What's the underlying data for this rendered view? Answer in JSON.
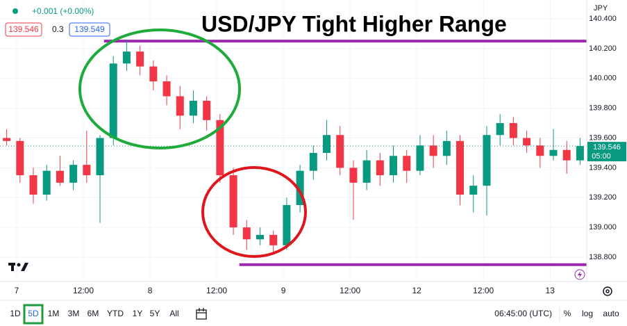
{
  "header": {
    "change": "+0.001 (+0.00%)",
    "bid": "139.546",
    "spread": "0.3",
    "ask": "139.549"
  },
  "chart_data": {
    "type": "candlestick",
    "title": "USD/JPY Tight Higher Range",
    "currency": "JPY",
    "x": [
      -0.15,
      0.05,
      0.25,
      0.45,
      0.65,
      0.85,
      1.05,
      1.25,
      1.45,
      1.65,
      1.85,
      2.05,
      2.25,
      2.45,
      2.65,
      2.85,
      3.05,
      3.25,
      3.45,
      3.65,
      3.85,
      4.05,
      4.25,
      4.45,
      4.65,
      4.85,
      5.05,
      5.25,
      5.45,
      5.65,
      5.85,
      6.05,
      6.25,
      6.45,
      6.65,
      6.85,
      7.05,
      7.25,
      7.45,
      7.65,
      7.85,
      8.05,
      8.25,
      8.45
    ],
    "open": [
      139.6,
      139.58,
      139.35,
      139.22,
      139.38,
      139.3,
      139.42,
      139.35,
      139.6,
      140.1,
      140.18,
      140.08,
      139.98,
      139.88,
      139.75,
      139.85,
      139.72,
      139.35,
      139.0,
      138.92,
      138.95,
      138.88,
      139.15,
      139.38,
      139.5,
      139.62,
      139.4,
      139.3,
      139.45,
      139.35,
      139.48,
      139.38,
      139.55,
      139.48,
      139.58,
      139.22,
      139.28,
      139.62,
      139.7,
      139.6,
      139.55,
      139.48,
      139.52,
      139.45
    ],
    "high": [
      139.66,
      139.6,
      139.4,
      139.42,
      139.48,
      139.45,
      139.65,
      139.62,
      140.15,
      140.26,
      140.22,
      140.12,
      140.02,
      139.95,
      139.92,
      139.88,
      139.76,
      139.4,
      139.05,
      139.0,
      138.98,
      139.2,
      139.42,
      139.55,
      139.72,
      139.68,
      139.45,
      139.52,
      139.5,
      139.55,
      139.52,
      139.62,
      139.62,
      139.65,
      139.62,
      139.35,
      139.68,
      139.76,
      139.74,
      139.65,
      139.6,
      139.66,
      139.58,
      139.6
    ],
    "low": [
      139.55,
      139.3,
      139.16,
      139.18,
      139.28,
      139.25,
      139.3,
      139.03,
      139.55,
      140.05,
      140.02,
      139.92,
      139.82,
      139.66,
      139.7,
      139.65,
      139.3,
      138.95,
      138.85,
      138.88,
      138.82,
      138.85,
      139.1,
      139.32,
      139.45,
      139.35,
      139.05,
      139.25,
      139.28,
      139.3,
      139.3,
      139.35,
      139.4,
      139.42,
      139.15,
      139.1,
      139.08,
      139.55,
      139.55,
      139.5,
      139.4,
      139.45,
      139.36,
      139.42
    ],
    "close": [
      139.58,
      139.35,
      139.22,
      139.38,
      139.3,
      139.42,
      139.35,
      139.6,
      140.1,
      140.18,
      140.08,
      139.98,
      139.88,
      139.75,
      139.85,
      139.72,
      139.35,
      139.0,
      138.92,
      138.95,
      138.88,
      139.15,
      139.38,
      139.5,
      139.62,
      139.4,
      139.3,
      139.45,
      139.35,
      139.48,
      139.38,
      139.55,
      139.48,
      139.58,
      139.22,
      139.28,
      139.62,
      139.7,
      139.6,
      139.55,
      139.48,
      139.52,
      139.45,
      139.546
    ],
    "up_color": "#089981",
    "down_color": "#f23645",
    "xlim": [
      -0.25,
      8.55
    ],
    "xticks": [
      {
        "value": 0,
        "label": "7"
      },
      {
        "value": 1,
        "label": "12:00"
      },
      {
        "value": 2,
        "label": "8"
      },
      {
        "value": 3,
        "label": "12:00"
      },
      {
        "value": 4,
        "label": "9"
      },
      {
        "value": 5,
        "label": "12:00"
      },
      {
        "value": 6,
        "label": "12"
      },
      {
        "value": 7,
        "label": "12:00"
      },
      {
        "value": 8,
        "label": "13"
      }
    ],
    "ylim": [
      138.637,
      140.526
    ],
    "yticks": [
      {
        "value": 138.8,
        "label": "138.800"
      },
      {
        "value": 139,
        "label": "139.000"
      },
      {
        "value": 139.2,
        "label": "139.200"
      },
      {
        "value": 139.4,
        "label": "139.400"
      },
      {
        "value": 139.6,
        "label": "139.600"
      },
      {
        "value": 139.8,
        "label": "139.800"
      },
      {
        "value": 140,
        "label": "140.000"
      },
      {
        "value": 140.2,
        "label": "140.200"
      },
      {
        "value": 140.4,
        "label": "140.400"
      }
    ],
    "last_price": 139.546,
    "countdown": "05:00",
    "levels": [
      {
        "value": 140.25,
        "x0": 1.31,
        "color": "#9c27b0"
      },
      {
        "value": 138.75,
        "x0": 3.34,
        "color": "#9c27b0"
      }
    ],
    "grid": true
  },
  "toolbar": {
    "ranges": [
      "1D",
      "5D",
      "1M",
      "3M",
      "6M",
      "YTD",
      "1Y",
      "5Y",
      "All"
    ],
    "active": 1,
    "time": "06:45:00 (UTC)",
    "options": [
      "%",
      "log",
      "auto"
    ]
  }
}
